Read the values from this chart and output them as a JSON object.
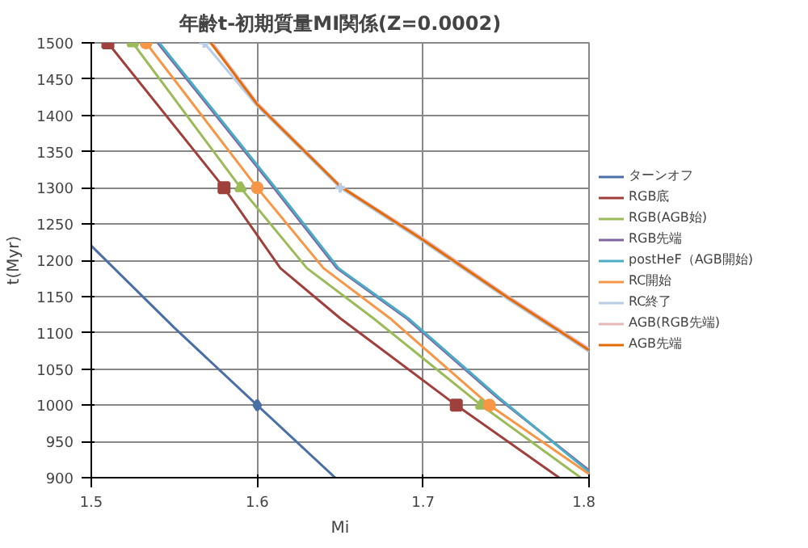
{
  "chart_data": {
    "type": "line",
    "title": "年齢t-初期質量MI関係(Z=0.0002)",
    "xlabel": "Mi",
    "ylabel": "t(Myr)",
    "xlim": [
      1.5,
      1.8
    ],
    "xticks": [
      1.5,
      1.6,
      1.7,
      1.8
    ],
    "ylim": [
      900,
      1500
    ],
    "yticks": [
      900,
      950,
      1000,
      1050,
      1100,
      1150,
      1200,
      1250,
      1300,
      1350,
      1400,
      1450,
      1500
    ],
    "grid": true,
    "legend": "right",
    "series": [
      {
        "name": "ターンオフ",
        "color": "#4a6fa5",
        "x": [
          1.5,
          1.55,
          1.6,
          1.647
        ],
        "values": [
          1220,
          1107,
          1000,
          900
        ]
      },
      {
        "name": "RGB底",
        "color": "#a0403c",
        "x": [
          1.51,
          1.58,
          1.614,
          1.65,
          1.72,
          1.782
        ],
        "values": [
          1500,
          1300,
          1189,
          1120,
          1000,
          900
        ]
      },
      {
        "name": "RGB(AGB始)",
        "color": "#9bbb59",
        "x": [
          1.525,
          1.59,
          1.63,
          1.67,
          1.735,
          1.795
        ],
        "values": [
          1500,
          1300,
          1189,
          1120,
          1000,
          900
        ]
      },
      {
        "name": "RGB先端",
        "color": "#8064a2",
        "x": [
          1.54,
          1.61,
          1.648,
          1.69,
          1.745,
          1.8
        ],
        "values": [
          1500,
          1300,
          1189,
          1120,
          1010,
          910
        ]
      },
      {
        "name": "postHeF（AGB開始)",
        "color": "#4bacc6",
        "x": [
          1.541,
          1.611,
          1.649,
          1.691,
          1.746,
          1.8
        ],
        "values": [
          1500,
          1300,
          1189,
          1120,
          1010,
          908
        ]
      },
      {
        "name": "RC開始",
        "color": "#f79646",
        "x": [
          1.533,
          1.6,
          1.64,
          1.68,
          1.74,
          1.8
        ],
        "values": [
          1500,
          1300,
          1189,
          1120,
          1000,
          905
        ]
      },
      {
        "name": "RC終了",
        "color": "#b9cde5",
        "x": [
          1.568,
          1.6,
          1.65,
          1.7,
          1.75,
          1.8
        ],
        "values": [
          1500,
          1413,
          1300,
          1226,
          1148,
          1074
        ]
      },
      {
        "name": "AGB(RGB先端)",
        "color": "#e6b9b8",
        "x": [
          1.573,
          1.6,
          1.65,
          1.7,
          1.75,
          1.8
        ],
        "values": [
          1500,
          1417,
          1303,
          1230,
          1152,
          1078
        ]
      },
      {
        "name": "AGB先端",
        "color": "#e36c09",
        "x": [
          1.572,
          1.6,
          1.65,
          1.7,
          1.75,
          1.8
        ],
        "values": [
          1500,
          1415,
          1302,
          1228,
          1150,
          1076
        ]
      },
      {
        "type": "scatter",
        "marker": "diamond",
        "color": "#4a6fa5",
        "x": [
          1.6
        ],
        "values": [
          1000
        ]
      },
      {
        "type": "scatter",
        "marker": "square",
        "color": "#a0403c",
        "x": [
          1.51,
          1.58,
          1.72
        ],
        "values": [
          1500,
          1300,
          1000
        ]
      },
      {
        "type": "scatter",
        "marker": "triangle",
        "color": "#9bbb59",
        "x": [
          1.525,
          1.59,
          1.735
        ],
        "values": [
          1500,
          1300,
          1000
        ]
      },
      {
        "type": "scatter",
        "marker": "circle",
        "color": "#f79646",
        "x": [
          1.533,
          1.6,
          1.74
        ],
        "values": [
          1500,
          1300,
          1000
        ]
      },
      {
        "type": "scatter",
        "marker": "cross",
        "color": "#b9cde5",
        "x": [
          1.568,
          1.65
        ],
        "values": [
          1500,
          1300
        ]
      }
    ]
  }
}
